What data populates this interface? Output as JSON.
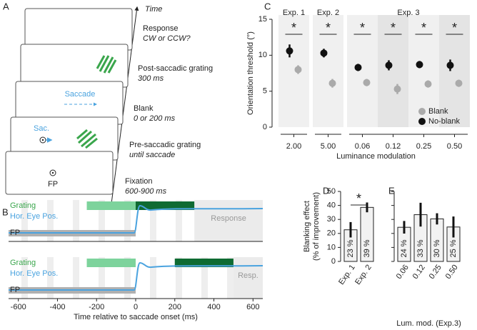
{
  "panels": {
    "a": "A",
    "b": "B",
    "c": "C",
    "d": "D",
    "e": "E"
  },
  "panel_a": {
    "time": "Time",
    "response": "Response",
    "response_note": "CW or CCW?",
    "post": "Post-saccadic grating",
    "post_note": "300 ms",
    "blank": "Blank",
    "blank_note": "0 or 200 ms",
    "pre": "Pre-saccadic grating",
    "pre_note": "until saccade",
    "fixation": "Fixation",
    "fixation_note": "600-900 ms",
    "saccade": "Saccade",
    "sac": "Sac.",
    "fp": "FP"
  },
  "chart_data": [
    {
      "type": "timeline",
      "xlabel": "Time relative to saccade onset (ms)",
      "xlim": [
        -650,
        650
      ],
      "xticks": [
        -600,
        -400,
        -200,
        0,
        200,
        400,
        600
      ],
      "row_labels": {
        "grating": "Grating",
        "eye": "Hor. Eye Pos.",
        "fp": "FP"
      },
      "colors": {
        "pre_grating": "#7dd39c",
        "post_grating": "#0f6b32",
        "eye": "#4aa3df",
        "fixation": "#b0b0b0",
        "response": "#ebebeb",
        "grating_label": "#3aa64c"
      },
      "fixation": [
        -650,
        0
      ],
      "rows": [
        {
          "pre_grating": [
            -250,
            0
          ],
          "post_grating": [
            0,
            300
          ],
          "response": [
            300,
            650
          ],
          "response_label": "Response"
        },
        {
          "pre_grating": [
            -250,
            0
          ],
          "post_grating": [
            200,
            500
          ],
          "response": [
            500,
            650
          ],
          "response_label": "Resp."
        }
      ]
    },
    {
      "type": "dot",
      "ylabel": "Orientation threshold (°)",
      "xlabel": "Luminance modulation",
      "ylim": [
        0,
        15
      ],
      "yticks": [
        0,
        5,
        10,
        15
      ],
      "annotation": "*",
      "legend": "lower right",
      "groups": [
        {
          "name": "Exp. 1",
          "categories": [
            "2.00"
          ]
        },
        {
          "name": "Exp. 2",
          "categories": [
            "5.00"
          ]
        },
        {
          "name": "Exp. 3",
          "categories": [
            "0.06",
            "0.12",
            "0.25",
            "0.50"
          ]
        }
      ],
      "series": [
        {
          "name": "Blank",
          "color": "#aaaaaa",
          "values": [
            8.0,
            6.1,
            6.2,
            5.3,
            6.0,
            6.1
          ],
          "errors": [
            0.6,
            0.6,
            0.5,
            0.7,
            0.5,
            0.5
          ]
        },
        {
          "name": "No-blank",
          "color": "#111111",
          "values": [
            10.6,
            10.3,
            8.3,
            8.6,
            8.7,
            8.6
          ],
          "errors": [
            0.9,
            0.6,
            0.5,
            0.7,
            0.5,
            0.8
          ]
        }
      ]
    },
    {
      "type": "bar",
      "ylabel": [
        "Blanking effect",
        "(% of improvement)"
      ],
      "categories": [
        "Exp. 1",
        "Exp. 2"
      ],
      "values": [
        22.6,
        38.6
      ],
      "errors": [
        5.5,
        3.5
      ],
      "value_labels": [
        "23 %",
        "39 %"
      ],
      "ylim": [
        0,
        50
      ],
      "yticks": [
        0,
        10,
        20,
        30,
        40,
        50
      ],
      "annotation": "*",
      "color": "#f2f2f2"
    },
    {
      "type": "bar",
      "xlabel": "Lum. mod. (Exp.3)",
      "categories": [
        "0.06",
        "0.12",
        "0.25",
        "0.50"
      ],
      "values": [
        24.4,
        33.4,
        30.4,
        24.6
      ],
      "errors": [
        4.5,
        8.5,
        4.0,
        7.5
      ],
      "value_labels": [
        "24 %",
        "33 %",
        "30 %",
        "25 %"
      ],
      "ylim": [
        0,
        50
      ],
      "yticks": [
        0,
        10,
        20,
        30,
        40,
        50
      ],
      "color": "#f2f2f2"
    }
  ]
}
